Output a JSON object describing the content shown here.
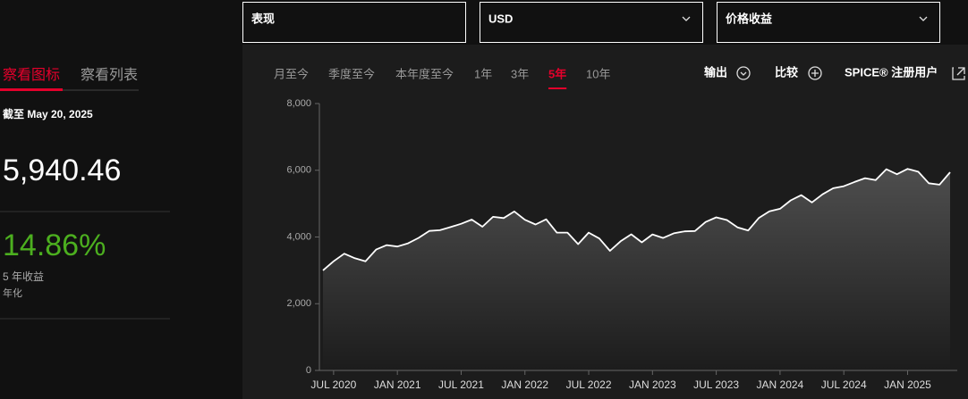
{
  "ui": {
    "dropdowns": [
      "表现",
      "USD",
      "价格收益"
    ],
    "view_tabs": [
      "察看图标",
      "察看列表"
    ],
    "active_view_tab": 0,
    "as_of": "截至 May 20, 2025",
    "price": "5,940.46",
    "return": "14.86%",
    "return_label": "5 年收益",
    "return_note": "年化",
    "ranges": [
      "月至今",
      "季度至今",
      "本年度至今",
      "1年",
      "3年",
      "5年",
      "10年"
    ],
    "active_range": 5,
    "actions": [
      "输出",
      "比较",
      "SPICE® 注册用户"
    ]
  },
  "chart_data": {
    "type": "line",
    "color": "#ffffff",
    "x": [
      "2020-06",
      "2020-07",
      "2020-08",
      "2020-09",
      "2020-10",
      "2020-11",
      "2020-12",
      "2021-01",
      "2021-02",
      "2021-03",
      "2021-04",
      "2021-05",
      "2021-06",
      "2021-07",
      "2021-08",
      "2021-09",
      "2021-10",
      "2021-11",
      "2021-12",
      "2022-01",
      "2022-02",
      "2022-03",
      "2022-04",
      "2022-05",
      "2022-06",
      "2022-07",
      "2022-08",
      "2022-09",
      "2022-10",
      "2022-11",
      "2022-12",
      "2023-01",
      "2023-02",
      "2023-03",
      "2023-04",
      "2023-05",
      "2023-06",
      "2023-07",
      "2023-08",
      "2023-09",
      "2023-10",
      "2023-11",
      "2023-12",
      "2024-01",
      "2024-02",
      "2024-03",
      "2024-04",
      "2024-05",
      "2024-06",
      "2024-07",
      "2024-08",
      "2024-09",
      "2024-10",
      "2024-11",
      "2024-12",
      "2025-01",
      "2025-02",
      "2025-03",
      "2025-04",
      "2025-05"
    ],
    "values": [
      3000,
      3271,
      3500,
      3363,
      3270,
      3622,
      3756,
      3714,
      3811,
      3973,
      4181,
      4204,
      4298,
      4395,
      4523,
      4308,
      4605,
      4567,
      4766,
      4516,
      4374,
      4530,
      4132,
      4132,
      3785,
      4130,
      3955,
      3586,
      3872,
      4080,
      3840,
      4077,
      3970,
      4109,
      4169,
      4180,
      4450,
      4589,
      4508,
      4288,
      4194,
      4568,
      4770,
      4846,
      5096,
      5254,
      5036,
      5278,
      5460,
      5522,
      5648,
      5762,
      5705,
      6032,
      5882,
      6041,
      5955,
      5612,
      5569,
      5940
    ],
    "xlim": [
      "2020-06",
      "2025-05"
    ],
    "xticks": [
      {
        "value": "2020-07",
        "label": "JUL 2020"
      },
      {
        "value": "2021-01",
        "label": "JAN 2021"
      },
      {
        "value": "2021-07",
        "label": "JUL 2021"
      },
      {
        "value": "2022-01",
        "label": "JAN 2022"
      },
      {
        "value": "2022-07",
        "label": "JUL 2022"
      },
      {
        "value": "2023-01",
        "label": "JAN 2023"
      },
      {
        "value": "2023-07",
        "label": "JUL 2023"
      },
      {
        "value": "2024-01",
        "label": "JAN 2024"
      },
      {
        "value": "2024-07",
        "label": "JUL 2024"
      },
      {
        "value": "2025-01",
        "label": "JAN 2025"
      }
    ],
    "ylim": [
      0,
      8000
    ],
    "yticks": [
      0,
      {
        "value": 2000,
        "label": "2,000"
      },
      {
        "value": 4000,
        "label": "4,000"
      },
      {
        "value": 6000,
        "label": "6,000"
      },
      {
        "value": 8000,
        "label": "8,000"
      }
    ]
  }
}
